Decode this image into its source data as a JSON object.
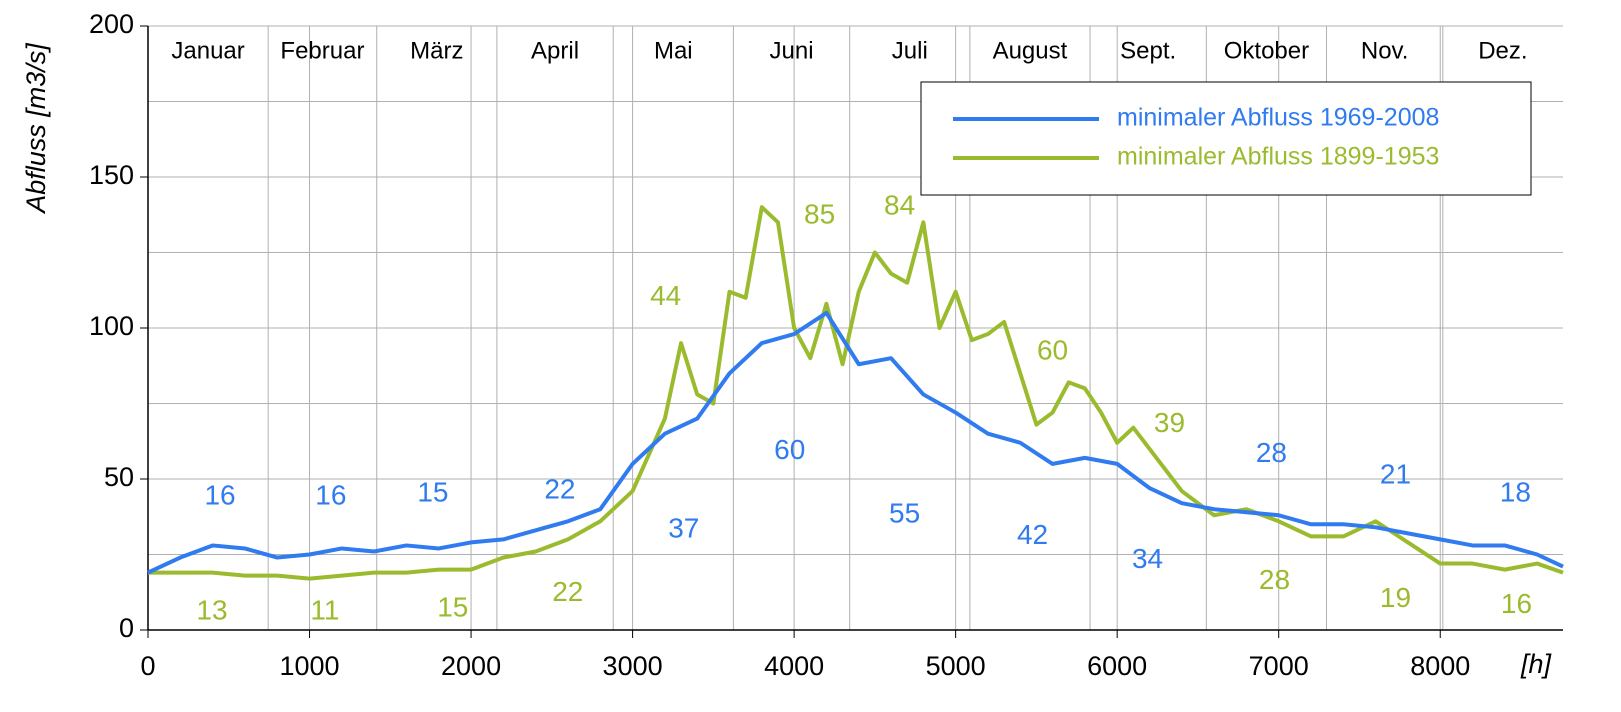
{
  "chart_data": {
    "type": "line",
    "ylabel": "Abfluss [m3/s]",
    "xlabel": "[h]",
    "xlim": [
      0,
      8760
    ],
    "xticks": [
      0,
      1000,
      2000,
      3000,
      4000,
      5000,
      6000,
      7000,
      8000
    ],
    "ylim": [
      0,
      200
    ],
    "yticks": [
      0,
      50,
      100,
      150,
      200
    ],
    "ygrid": [
      25,
      75,
      125,
      175
    ],
    "grid": true,
    "legend": "upper right",
    "months": [
      "Januar",
      "Februar",
      "März",
      "April",
      "Mai",
      "Juni",
      "Juli",
      "August",
      "Sept.",
      "Oktober",
      "Nov.",
      "Dez."
    ],
    "month_edges": [
      744,
      1416,
      2160,
      2880,
      3624,
      4344,
      5088,
      5832,
      6552,
      7296,
      8016
    ],
    "series": [
      {
        "name": "minimaler Abfluss 1969-2008",
        "color": "#2f7bef",
        "x": [
          0,
          200,
          400,
          600,
          800,
          1000,
          1200,
          1400,
          1600,
          1800,
          2000,
          2200,
          2400,
          2600,
          2800,
          3000,
          3200,
          3400,
          3600,
          3800,
          4000,
          4200,
          4400,
          4600,
          4800,
          5000,
          5200,
          5400,
          5600,
          5800,
          6000,
          6200,
          6400,
          6600,
          6800,
          7000,
          7200,
          7400,
          7600,
          7800,
          8000,
          8200,
          8400,
          8600,
          8760
        ],
        "values": [
          19,
          24,
          28,
          27,
          24,
          25,
          27,
          26,
          28,
          27,
          29,
          30,
          33,
          36,
          40,
          55,
          65,
          70,
          85,
          95,
          98,
          105,
          88,
          90,
          78,
          72,
          65,
          62,
          55,
          57,
          55,
          47,
          42,
          40,
          39,
          38,
          35,
          35,
          34,
          32,
          30,
          28,
          28,
          25,
          21
        ]
      },
      {
        "name": "minimaler Abfluss 1899-1953",
        "color": "#9bbb2f",
        "x": [
          0,
          200,
          400,
          600,
          800,
          1000,
          1200,
          1400,
          1600,
          1800,
          2000,
          2200,
          2400,
          2600,
          2800,
          3000,
          3200,
          3300,
          3400,
          3500,
          3600,
          3700,
          3800,
          3900,
          4000,
          4100,
          4200,
          4300,
          4400,
          4500,
          4600,
          4700,
          4800,
          4900,
          5000,
          5100,
          5200,
          5300,
          5400,
          5500,
          5600,
          5700,
          5800,
          5900,
          6000,
          6100,
          6200,
          6400,
          6600,
          6800,
          7000,
          7200,
          7400,
          7600,
          7800,
          8000,
          8200,
          8400,
          8600,
          8760
        ],
        "values": [
          19,
          19,
          19,
          18,
          18,
          17,
          18,
          19,
          19,
          20,
          20,
          24,
          26,
          30,
          36,
          46,
          70,
          95,
          78,
          75,
          112,
          110,
          140,
          135,
          100,
          90,
          108,
          88,
          112,
          125,
          118,
          115,
          135,
          100,
          112,
          96,
          98,
          102,
          85,
          68,
          72,
          82,
          80,
          72,
          62,
          67,
          60,
          46,
          38,
          40,
          36,
          31,
          31,
          36,
          29,
          22,
          22,
          20,
          22,
          19
        ]
      }
    ],
    "annotations": [
      {
        "text": "16",
        "x": 446,
        "y": 44,
        "series": 0
      },
      {
        "text": "16",
        "x": 1132,
        "y": 44,
        "series": 0
      },
      {
        "text": "15",
        "x": 1764,
        "y": 45,
        "series": 0
      },
      {
        "text": "22",
        "x": 2550,
        "y": 46,
        "series": 0
      },
      {
        "text": "37",
        "x": 3317,
        "y": 33,
        "series": 0
      },
      {
        "text": "60",
        "x": 3973,
        "y": 59,
        "series": 0
      },
      {
        "text": "55",
        "x": 4684,
        "y": 38,
        "series": 0
      },
      {
        "text": "42",
        "x": 5476,
        "y": 31,
        "series": 0
      },
      {
        "text": "34",
        "x": 6188,
        "y": 23,
        "series": 0
      },
      {
        "text": "28",
        "x": 6955,
        "y": 58,
        "series": 0
      },
      {
        "text": "21",
        "x": 7723,
        "y": 51,
        "series": 0
      },
      {
        "text": "18",
        "x": 8465,
        "y": 45,
        "series": 0
      },
      {
        "text": "13",
        "x": 396,
        "y": 6,
        "series": 1
      },
      {
        "text": "11",
        "x": 1095,
        "y": 6,
        "series": 1
      },
      {
        "text": "15",
        "x": 1887,
        "y": 7,
        "series": 1
      },
      {
        "text": "22",
        "x": 2599,
        "y": 12,
        "series": 1
      },
      {
        "text": "44",
        "x": 3205,
        "y": 110,
        "series": 1
      },
      {
        "text": "85",
        "x": 4158,
        "y": 137,
        "series": 1
      },
      {
        "text": "84",
        "x": 4653,
        "y": 140,
        "series": 1
      },
      {
        "text": "60",
        "x": 5600,
        "y": 92,
        "series": 1
      },
      {
        "text": "39",
        "x": 6324,
        "y": 68,
        "series": 1
      },
      {
        "text": "28",
        "x": 6974,
        "y": 16,
        "series": 1
      },
      {
        "text": "19",
        "x": 7723,
        "y": 10,
        "series": 1
      },
      {
        "text": "16",
        "x": 8472,
        "y": 8,
        "series": 1
      }
    ]
  }
}
